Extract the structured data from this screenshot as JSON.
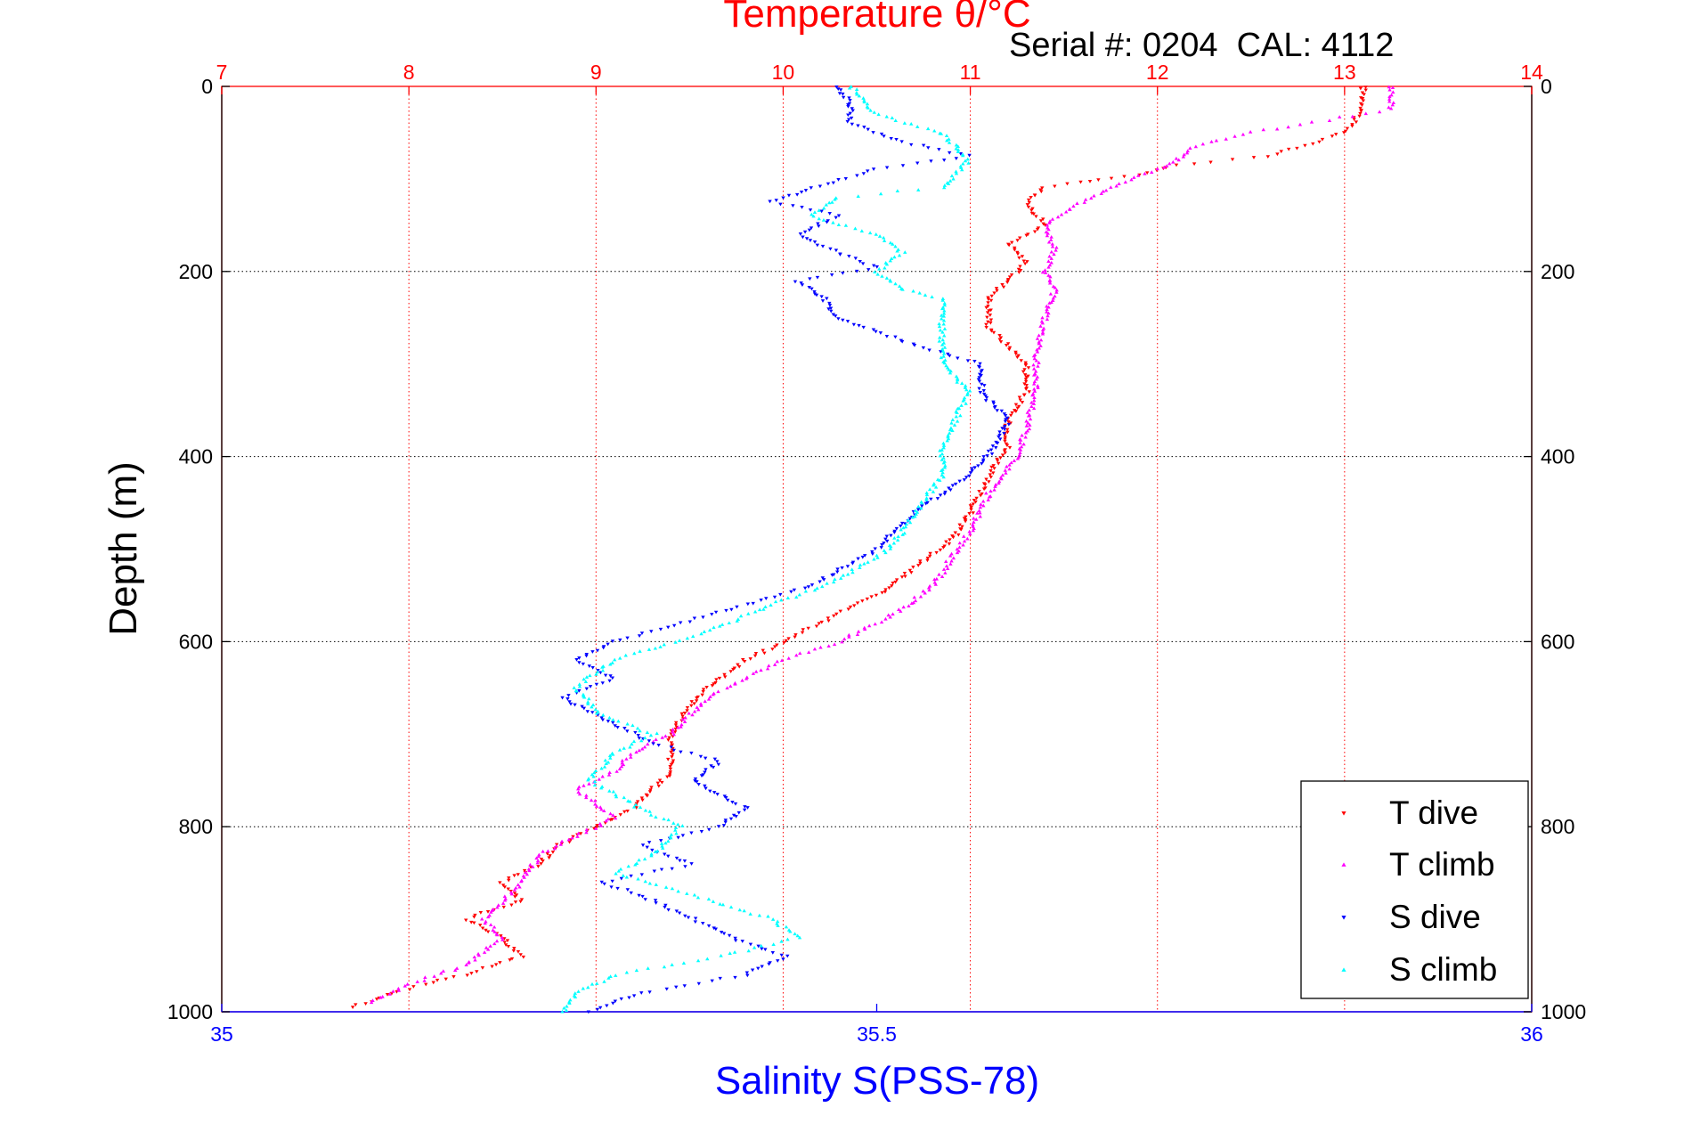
{
  "chart_data": {
    "type": "scatter",
    "title": "Temperature θ/°C",
    "annotation": "Serial #: 0204  CAL: 4112",
    "ylabel": "Depth (m)",
    "xlabel": "Salinity S(PSS-78)",
    "top_axis": {
      "label": "Temperature θ/°C",
      "range": [
        7,
        14
      ],
      "ticks": [
        "7",
        "8",
        "9",
        "10",
        "11",
        "12",
        "13",
        "14"
      ],
      "color": "#ff0000"
    },
    "bottom_axis": {
      "label": "Salinity S(PSS-78)",
      "range": [
        35,
        36
      ],
      "ticks": [
        "35",
        "35.5",
        "36"
      ],
      "color": "#0000ff"
    },
    "y_axis": {
      "range": [
        0,
        1000
      ],
      "reversed": true,
      "ticks": [
        "0",
        "200",
        "400",
        "600",
        "800",
        "1000"
      ]
    },
    "grid": true,
    "legend": {
      "position": "bottom-right"
    },
    "series": [
      {
        "name": "T dive",
        "axis": "top",
        "color": "#ff0000",
        "marker": "triangle-down",
        "points": [
          [
            13.1,
            0
          ],
          [
            13.1,
            25
          ],
          [
            13.0,
            50
          ],
          [
            12.6,
            75
          ],
          [
            12.1,
            85
          ],
          [
            11.9,
            95
          ],
          [
            11.7,
            100
          ],
          [
            11.4,
            110
          ],
          [
            11.3,
            125
          ],
          [
            11.4,
            150
          ],
          [
            11.2,
            170
          ],
          [
            11.3,
            190
          ],
          [
            11.2,
            210
          ],
          [
            11.1,
            230
          ],
          [
            11.1,
            260
          ],
          [
            11.2,
            280
          ],
          [
            11.3,
            300
          ],
          [
            11.3,
            330
          ],
          [
            11.2,
            360
          ],
          [
            11.2,
            390
          ],
          [
            11.1,
            420
          ],
          [
            11.0,
            460
          ],
          [
            10.9,
            490
          ],
          [
            10.7,
            520
          ],
          [
            10.5,
            550
          ],
          [
            10.3,
            570
          ],
          [
            10.1,
            590
          ],
          [
            9.8,
            620
          ],
          [
            9.6,
            650
          ],
          [
            9.5,
            670
          ],
          [
            9.4,
            700
          ],
          [
            9.4,
            740
          ],
          [
            9.2,
            780
          ],
          [
            9.0,
            800
          ],
          [
            8.8,
            820
          ],
          [
            8.7,
            840
          ],
          [
            8.5,
            860
          ],
          [
            8.6,
            880
          ],
          [
            8.3,
            900
          ],
          [
            8.5,
            920
          ],
          [
            8.6,
            940
          ],
          [
            8.3,
            960
          ],
          [
            7.9,
            980
          ],
          [
            7.7,
            995
          ]
        ]
      },
      {
        "name": "T climb",
        "axis": "top",
        "color": "#ff00ff",
        "marker": "triangle-up",
        "points": [
          [
            13.25,
            0
          ],
          [
            13.25,
            25
          ],
          [
            12.5,
            50
          ],
          [
            12.2,
            65
          ],
          [
            12.1,
            80
          ],
          [
            12.0,
            90
          ],
          [
            11.8,
            105
          ],
          [
            11.6,
            125
          ],
          [
            11.4,
            150
          ],
          [
            11.45,
            175
          ],
          [
            11.4,
            200
          ],
          [
            11.45,
            220
          ],
          [
            11.4,
            250
          ],
          [
            11.35,
            290
          ],
          [
            11.35,
            330
          ],
          [
            11.3,
            370
          ],
          [
            11.25,
            400
          ],
          [
            11.1,
            440
          ],
          [
            11.0,
            480
          ],
          [
            10.9,
            510
          ],
          [
            10.8,
            540
          ],
          [
            10.6,
            570
          ],
          [
            10.3,
            600
          ],
          [
            10.0,
            620
          ],
          [
            9.8,
            640
          ],
          [
            9.6,
            660
          ],
          [
            9.5,
            680
          ],
          [
            9.4,
            700
          ],
          [
            9.2,
            720
          ],
          [
            9.1,
            740
          ],
          [
            8.9,
            760
          ],
          [
            9.1,
            790
          ],
          [
            8.9,
            810
          ],
          [
            8.7,
            830
          ],
          [
            8.6,
            860
          ],
          [
            8.5,
            880
          ],
          [
            8.4,
            900
          ],
          [
            8.5,
            920
          ],
          [
            8.3,
            950
          ],
          [
            8.0,
            970
          ],
          [
            7.8,
            990
          ]
        ]
      },
      {
        "name": "S dive",
        "axis": "bottom",
        "color": "#0000ff",
        "marker": "triangle-down",
        "points": [
          [
            35.47,
            0
          ],
          [
            35.48,
            20
          ],
          [
            35.48,
            40
          ],
          [
            35.52,
            60
          ],
          [
            35.57,
            75
          ],
          [
            35.5,
            90
          ],
          [
            35.45,
            110
          ],
          [
            35.42,
            125
          ],
          [
            35.47,
            140
          ],
          [
            35.44,
            160
          ],
          [
            35.47,
            180
          ],
          [
            35.5,
            195
          ],
          [
            35.44,
            210
          ],
          [
            35.46,
            230
          ],
          [
            35.47,
            250
          ],
          [
            35.53,
            280
          ],
          [
            35.58,
            300
          ],
          [
            35.58,
            330
          ],
          [
            35.6,
            360
          ],
          [
            35.59,
            390
          ],
          [
            35.57,
            420
          ],
          [
            35.53,
            460
          ],
          [
            35.5,
            500
          ],
          [
            35.45,
            540
          ],
          [
            35.4,
            560
          ],
          [
            35.35,
            580
          ],
          [
            35.3,
            600
          ],
          [
            35.27,
            620
          ],
          [
            35.3,
            640
          ],
          [
            35.26,
            660
          ],
          [
            35.3,
            690
          ],
          [
            35.33,
            710
          ],
          [
            35.38,
            730
          ],
          [
            35.36,
            750
          ],
          [
            35.4,
            780
          ],
          [
            35.38,
            800
          ],
          [
            35.32,
            820
          ],
          [
            35.36,
            840
          ],
          [
            35.29,
            860
          ],
          [
            35.33,
            880
          ],
          [
            35.36,
            900
          ],
          [
            35.39,
            920
          ],
          [
            35.43,
            940
          ],
          [
            35.4,
            960
          ],
          [
            35.32,
            980
          ],
          [
            35.28,
            1000
          ]
        ]
      },
      {
        "name": "S climb",
        "axis": "bottom",
        "color": "#00ffff",
        "marker": "triangle-up",
        "points": [
          [
            35.48,
            0
          ],
          [
            35.5,
            30
          ],
          [
            35.55,
            50
          ],
          [
            35.57,
            80
          ],
          [
            35.55,
            110
          ],
          [
            35.47,
            120
          ],
          [
            35.45,
            140
          ],
          [
            35.5,
            160
          ],
          [
            35.52,
            180
          ],
          [
            35.5,
            200
          ],
          [
            35.52,
            220
          ],
          [
            35.55,
            230
          ],
          [
            35.55,
            260
          ],
          [
            35.55,
            300
          ],
          [
            35.57,
            330
          ],
          [
            35.56,
            360
          ],
          [
            35.55,
            390
          ],
          [
            35.55,
            420
          ],
          [
            35.53,
            460
          ],
          [
            35.51,
            500
          ],
          [
            35.46,
            540
          ],
          [
            35.42,
            560
          ],
          [
            35.37,
            590
          ],
          [
            35.3,
            620
          ],
          [
            35.27,
            650
          ],
          [
            35.29,
            680
          ],
          [
            35.33,
            700
          ],
          [
            35.3,
            720
          ],
          [
            35.28,
            750
          ],
          [
            35.32,
            780
          ],
          [
            35.35,
            800
          ],
          [
            35.33,
            830
          ],
          [
            35.3,
            850
          ],
          [
            35.35,
            870
          ],
          [
            35.42,
            900
          ],
          [
            35.44,
            920
          ],
          [
            35.38,
            940
          ],
          [
            35.3,
            960
          ],
          [
            35.27,
            980
          ],
          [
            35.26,
            1000
          ]
        ]
      }
    ]
  }
}
